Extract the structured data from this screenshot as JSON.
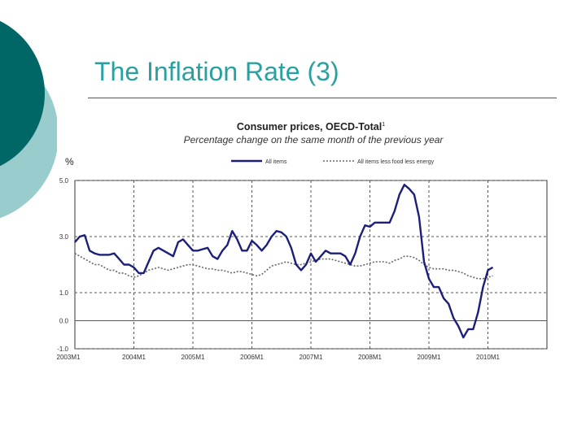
{
  "slide": {
    "title": "The Inflation Rate (3)"
  },
  "colors": {
    "accent_dark": "#006666",
    "accent_light": "#99cccc",
    "title": "#2aa0a0",
    "series_all": "#1b1f7a",
    "series_core": "#666666"
  },
  "chart_data": {
    "type": "line",
    "title": "Consumer prices, OECD-Total",
    "title_superscript": "1",
    "subtitle": "Percentage change on the same month of the previous year",
    "ylabel": "%",
    "xlabel": "",
    "ylim": [
      -1.0,
      5.0
    ],
    "yticks": [
      5.0,
      3.0,
      1.0,
      0.0,
      -1.0
    ],
    "ytick_labels": [
      "5.0",
      "3.0",
      "1.0",
      "0.0",
      "-1.0"
    ],
    "xlim": [
      0,
      96
    ],
    "xticks": [
      0,
      12,
      24,
      36,
      48,
      60,
      72,
      84
    ],
    "xtick_labels": [
      "2003M1",
      "2004M1",
      "2005M1",
      "2006M1",
      "2007M1",
      "2008M1",
      "2009M1",
      "2010M1"
    ],
    "grid": true,
    "legend_position": "top",
    "series": [
      {
        "name": "All items",
        "style": "solid",
        "x": [
          0,
          1,
          2,
          3,
          4,
          5,
          6,
          7,
          8,
          9,
          10,
          11,
          12,
          13,
          14,
          15,
          16,
          17,
          18,
          19,
          20,
          21,
          22,
          23,
          24,
          25,
          26,
          27,
          28,
          29,
          30,
          31,
          32,
          33,
          34,
          35,
          36,
          37,
          38,
          39,
          40,
          41,
          42,
          43,
          44,
          45,
          46,
          47,
          48,
          49,
          50,
          51,
          52,
          53,
          54,
          55,
          56,
          57,
          58,
          59,
          60,
          61,
          62,
          63,
          64,
          65,
          66,
          67,
          68,
          69,
          70,
          71,
          72,
          73,
          74,
          75,
          76,
          77,
          78,
          79,
          80,
          81,
          82,
          83,
          84,
          85
        ],
        "values": [
          2.8,
          3.0,
          3.05,
          2.5,
          2.4,
          2.35,
          2.35,
          2.35,
          2.4,
          2.2,
          2.0,
          2.0,
          1.9,
          1.7,
          1.7,
          2.1,
          2.5,
          2.6,
          2.5,
          2.4,
          2.3,
          2.8,
          2.9,
          2.7,
          2.5,
          2.5,
          2.55,
          2.6,
          2.3,
          2.2,
          2.5,
          2.7,
          3.2,
          2.9,
          2.5,
          2.5,
          2.85,
          2.7,
          2.5,
          2.7,
          3.0,
          3.2,
          3.15,
          3.0,
          2.6,
          2.0,
          1.8,
          2.0,
          2.4,
          2.1,
          2.3,
          2.5,
          2.4,
          2.4,
          2.4,
          2.3,
          2.0,
          2.4,
          3.0,
          3.4,
          3.35,
          3.5,
          3.5,
          3.5,
          3.5,
          3.9,
          4.5,
          4.85,
          4.7,
          4.5,
          3.7,
          2.1,
          1.5,
          1.2,
          1.2,
          0.8,
          0.6,
          0.1,
          -0.2,
          -0.6,
          -0.3,
          -0.3,
          0.3,
          1.2,
          1.8,
          1.9
        ]
      },
      {
        "name": "All items less food less energy",
        "style": "dotted",
        "x": [
          0,
          1,
          2,
          3,
          4,
          5,
          6,
          7,
          8,
          9,
          10,
          11,
          12,
          13,
          14,
          15,
          16,
          17,
          18,
          19,
          20,
          21,
          22,
          23,
          24,
          25,
          26,
          27,
          28,
          29,
          30,
          31,
          32,
          33,
          34,
          35,
          36,
          37,
          38,
          39,
          40,
          41,
          42,
          43,
          44,
          45,
          46,
          47,
          48,
          49,
          50,
          51,
          52,
          53,
          54,
          55,
          56,
          57,
          58,
          59,
          60,
          61,
          62,
          63,
          64,
          65,
          66,
          67,
          68,
          69,
          70,
          71,
          72,
          73,
          74,
          75,
          76,
          77,
          78,
          79,
          80,
          81,
          82,
          83,
          84,
          85
        ],
        "values": [
          2.4,
          2.3,
          2.2,
          2.1,
          2.0,
          2.0,
          1.9,
          1.8,
          1.8,
          1.7,
          1.7,
          1.6,
          1.55,
          1.6,
          1.7,
          1.8,
          1.85,
          1.9,
          1.85,
          1.8,
          1.85,
          1.9,
          1.95,
          2.0,
          2.0,
          1.95,
          1.9,
          1.85,
          1.85,
          1.8,
          1.8,
          1.75,
          1.7,
          1.75,
          1.75,
          1.7,
          1.65,
          1.6,
          1.65,
          1.8,
          1.95,
          2.0,
          2.05,
          2.1,
          2.05,
          2.0,
          2.0,
          2.05,
          2.1,
          2.15,
          2.2,
          2.2,
          2.2,
          2.15,
          2.1,
          2.05,
          2.0,
          1.95,
          1.95,
          2.0,
          2.05,
          2.1,
          2.1,
          2.1,
          2.05,
          2.15,
          2.2,
          2.3,
          2.3,
          2.25,
          2.15,
          2.0,
          1.9,
          1.85,
          1.85,
          1.85,
          1.8,
          1.8,
          1.75,
          1.7,
          1.6,
          1.55,
          1.5,
          1.5,
          1.55,
          1.6
        ]
      }
    ]
  }
}
